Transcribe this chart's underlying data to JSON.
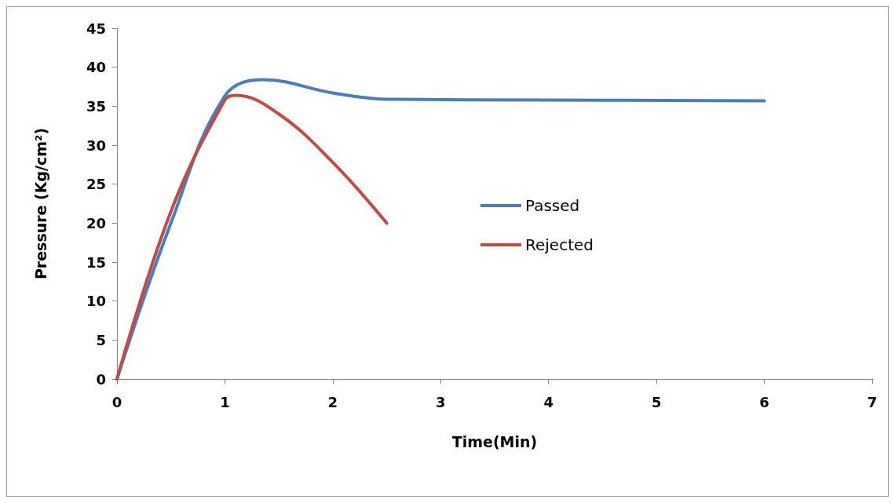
{
  "chart_data": {
    "type": "line",
    "xlabel": "Time(Min)",
    "ylabel": "Pressure (Kg/cm²)",
    "xlim": [
      0,
      7
    ],
    "xticks": [
      0,
      1,
      2,
      3,
      4,
      5,
      6,
      7
    ],
    "ylim": [
      0,
      45
    ],
    "yticks": [
      0,
      5,
      10,
      15,
      20,
      25,
      30,
      35,
      40,
      45
    ],
    "grid": false,
    "legend": "right",
    "marker": "none",
    "line_style": "solid",
    "series": [
      {
        "name": "Passed",
        "color": "#4a7ebb",
        "x": [
          0,
          0.5,
          1,
          1.36,
          2,
          2.5,
          4,
          6
        ],
        "values": [
          0,
          20,
          36.3,
          38.4,
          36.7,
          35.9,
          35.8,
          35.7
        ]
      },
      {
        "name": "Rejected",
        "color": "#be4b48",
        "x": [
          0,
          0.5,
          1,
          1.1,
          1.5,
          2,
          2.5
        ],
        "values": [
          0,
          21.5,
          35.8,
          36.4,
          34,
          27.8,
          20
        ]
      }
    ]
  }
}
